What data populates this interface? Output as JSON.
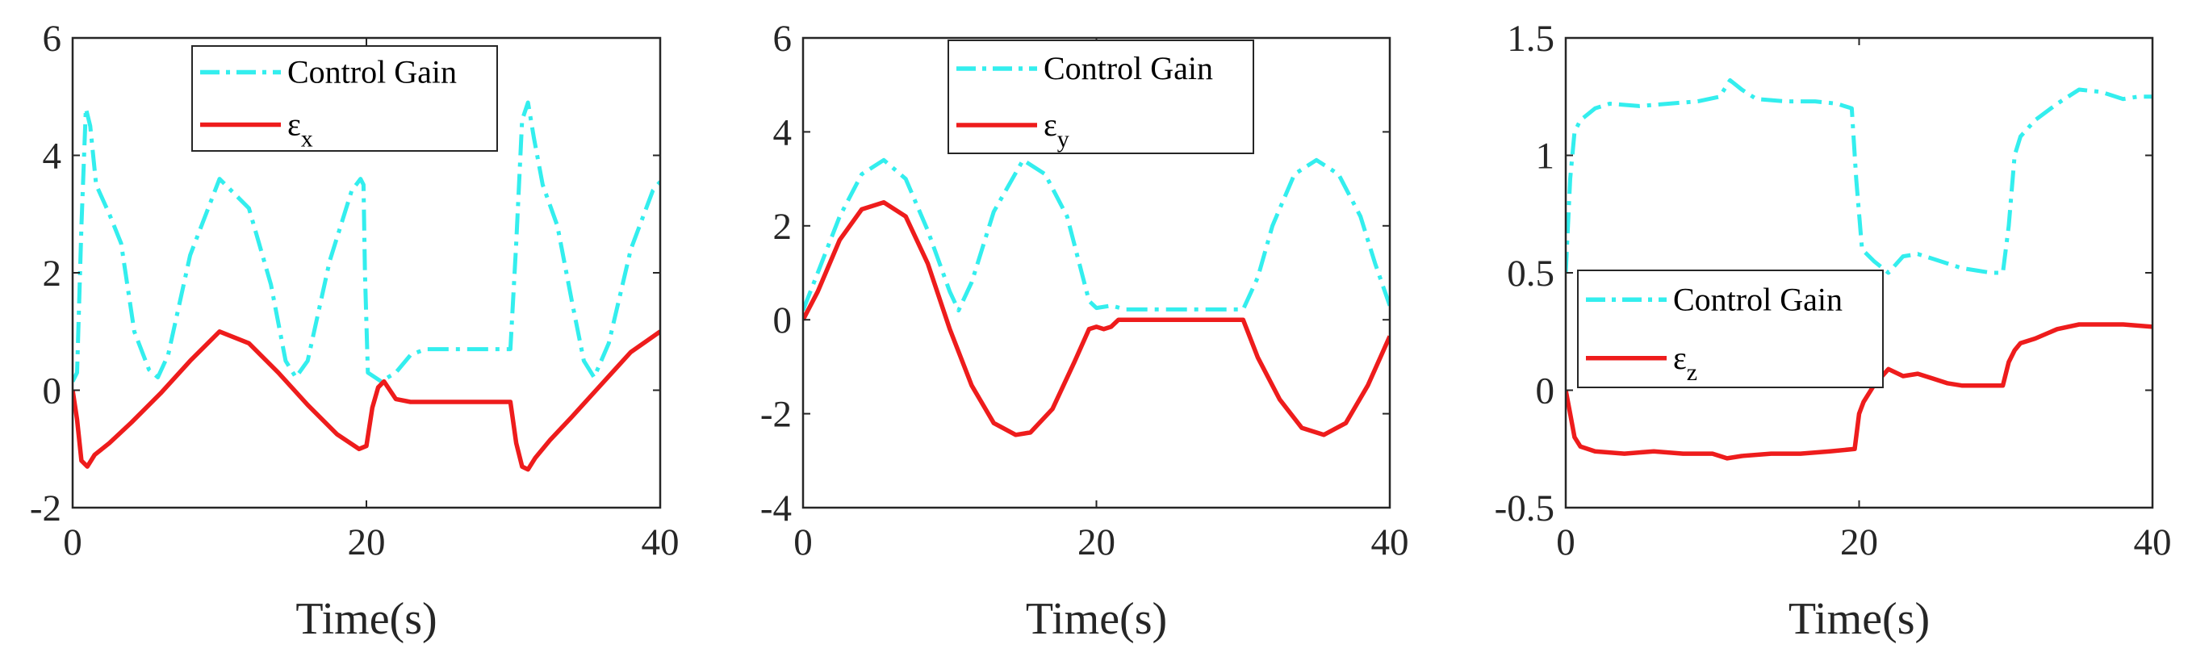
{
  "colors": {
    "gain": "#33eeee",
    "error": "#ee1c1c",
    "axis": "#262626"
  },
  "chart_data": [
    {
      "type": "line",
      "xlabel": "Time(s)",
      "xlim": [
        0,
        40
      ],
      "ylim": [
        -2,
        6
      ],
      "xticks": [
        "0",
        "20",
        "40"
      ],
      "yticks": [
        "-2",
        "0",
        "2",
        "4",
        "6"
      ],
      "legend_position": "top-center",
      "series": [
        {
          "name": "Control Gain",
          "style": "dashdot",
          "x": [
            0,
            0.3,
            0.6,
            0.9,
            1.2,
            1.6,
            2.5,
            3.3,
            4.2,
            5.2,
            5.8,
            6.5,
            8,
            10,
            12,
            13.5,
            14.5,
            15.2,
            16,
            17.5,
            19,
            19.6,
            19.8,
            19.9,
            20.1,
            21,
            22,
            23,
            24,
            25,
            26,
            27,
            28,
            29,
            29.8,
            30.2,
            30.6,
            31,
            31.4,
            32,
            33,
            34,
            34.8,
            35.5,
            36.5,
            38,
            39.5,
            40
          ],
          "y": [
            0.15,
            0.3,
            2.8,
            4.8,
            4.5,
            3.5,
            3.0,
            2.5,
            1.0,
            0.35,
            0.22,
            0.6,
            2.3,
            3.6,
            3.1,
            1.8,
            0.5,
            0.22,
            0.5,
            2.2,
            3.4,
            3.6,
            3.5,
            2.0,
            0.3,
            0.15,
            0.3,
            0.6,
            0.7,
            0.7,
            0.7,
            0.7,
            0.7,
            0.7,
            0.7,
            2.5,
            4.6,
            4.9,
            4.3,
            3.5,
            2.8,
            1.5,
            0.5,
            0.22,
            0.8,
            2.4,
            3.4,
            3.55
          ]
        },
        {
          "name": "ε",
          "sub": "x",
          "style": "solid",
          "x": [
            0,
            0.3,
            0.6,
            1,
            1.5,
            2.5,
            4,
            6,
            8,
            10,
            12,
            14,
            16,
            18,
            19.5,
            20,
            20.4,
            20.8,
            21.2,
            21.6,
            22,
            23,
            25,
            27,
            29,
            29.8,
            30.2,
            30.6,
            31,
            31.5,
            32.5,
            34,
            36,
            38,
            40
          ],
          "y": [
            0,
            -0.5,
            -1.2,
            -1.3,
            -1.1,
            -0.9,
            -0.55,
            -0.05,
            0.5,
            1.0,
            0.8,
            0.3,
            -0.25,
            -0.75,
            -1.0,
            -0.95,
            -0.3,
            0.05,
            0.15,
            0.0,
            -0.15,
            -0.2,
            -0.2,
            -0.2,
            -0.2,
            -0.2,
            -0.9,
            -1.3,
            -1.35,
            -1.15,
            -0.85,
            -0.45,
            0.1,
            0.65,
            1.0
          ]
        }
      ]
    },
    {
      "type": "line",
      "xlabel": "Time(s)",
      "xlim": [
        0,
        40
      ],
      "ylim": [
        -4,
        6
      ],
      "xticks": [
        "0",
        "20",
        "40"
      ],
      "yticks": [
        "-4",
        "-2",
        "0",
        "2",
        "4",
        "6"
      ],
      "legend_position": "top-center",
      "series": [
        {
          "name": "Control Gain",
          "style": "dashdot",
          "x": [
            0,
            1,
            2.5,
            4,
            5.5,
            7,
            8.5,
            10,
            10.6,
            11.5,
            13,
            15,
            16.5,
            18,
            19,
            19.5,
            20,
            21,
            22,
            25,
            28,
            30,
            31,
            32,
            33.5,
            35,
            36.5,
            38,
            39,
            40
          ],
          "y": [
            0.2,
            1.0,
            2.2,
            3.1,
            3.4,
            3.0,
            1.9,
            0.6,
            0.2,
            0.8,
            2.3,
            3.4,
            3.1,
            2.2,
            1.0,
            0.4,
            0.25,
            0.3,
            0.22,
            0.22,
            0.22,
            0.22,
            0.9,
            2.0,
            3.1,
            3.4,
            3.1,
            2.2,
            1.2,
            0.3
          ]
        },
        {
          "name": "ε",
          "sub": "y",
          "style": "solid",
          "x": [
            0,
            1,
            2.5,
            4,
            5.5,
            7,
            8.5,
            10,
            11.5,
            13,
            14.5,
            15.5,
            17,
            18.5,
            19.5,
            20,
            20.5,
            21,
            21.5,
            23,
            26,
            29,
            30,
            31,
            32.5,
            34,
            35.5,
            37,
            38.5,
            40
          ],
          "y": [
            0,
            0.6,
            1.7,
            2.35,
            2.5,
            2.2,
            1.2,
            -0.2,
            -1.4,
            -2.2,
            -2.45,
            -2.4,
            -1.9,
            -0.9,
            -0.2,
            -0.15,
            -0.2,
            -0.15,
            0.0,
            0.0,
            0.0,
            0.0,
            0.0,
            -0.8,
            -1.7,
            -2.3,
            -2.45,
            -2.2,
            -1.4,
            -0.35
          ]
        }
      ]
    },
    {
      "type": "line",
      "xlabel": "Time(s)",
      "xlim": [
        0,
        40
      ],
      "ylim": [
        -0.5,
        1.5
      ],
      "xticks": [
        "0",
        "20",
        "40"
      ],
      "yticks": [
        "-0.5",
        "0",
        "0.5",
        "1",
        "1.5"
      ],
      "legend_position": "middle-left",
      "series": [
        {
          "name": "Control Gain",
          "style": "dashdot",
          "x": [
            0,
            0.3,
            0.6,
            1,
            2,
            3,
            5,
            7,
            9,
            10.5,
            11.2,
            12,
            13,
            15,
            17,
            18.5,
            19.5,
            19.8,
            20.2,
            21,
            22,
            23,
            24,
            25,
            26,
            27,
            28,
            29,
            29.8,
            30.2,
            30.6,
            31,
            32,
            33.5,
            35,
            36.5,
            38,
            39,
            40
          ],
          "y": [
            0.5,
            0.9,
            1.1,
            1.15,
            1.2,
            1.22,
            1.21,
            1.22,
            1.23,
            1.25,
            1.32,
            1.28,
            1.24,
            1.23,
            1.23,
            1.22,
            1.2,
            0.9,
            0.6,
            0.55,
            0.5,
            0.57,
            0.58,
            0.56,
            0.54,
            0.52,
            0.51,
            0.5,
            0.5,
            0.7,
            1.0,
            1.08,
            1.15,
            1.22,
            1.28,
            1.27,
            1.24,
            1.25,
            1.25
          ]
        },
        {
          "name": "ε",
          "sub": "z",
          "style": "solid",
          "x": [
            0,
            0.3,
            0.6,
            1,
            2,
            4,
            6,
            8,
            10,
            11,
            12,
            14,
            16,
            18,
            19.7,
            20,
            20.3,
            21,
            22,
            23,
            24,
            25,
            26,
            27,
            28,
            29,
            29.8,
            30.2,
            30.6,
            31,
            32,
            33.5,
            35,
            36.5,
            38,
            40
          ],
          "y": [
            0,
            -0.1,
            -0.2,
            -0.24,
            -0.26,
            -0.27,
            -0.26,
            -0.27,
            -0.27,
            -0.29,
            -0.28,
            -0.27,
            -0.27,
            -0.26,
            -0.25,
            -0.1,
            -0.05,
            0.02,
            0.09,
            0.06,
            0.07,
            0.05,
            0.03,
            0.02,
            0.02,
            0.02,
            0.02,
            0.12,
            0.17,
            0.2,
            0.22,
            0.26,
            0.28,
            0.28,
            0.28,
            0.27
          ]
        }
      ]
    }
  ]
}
